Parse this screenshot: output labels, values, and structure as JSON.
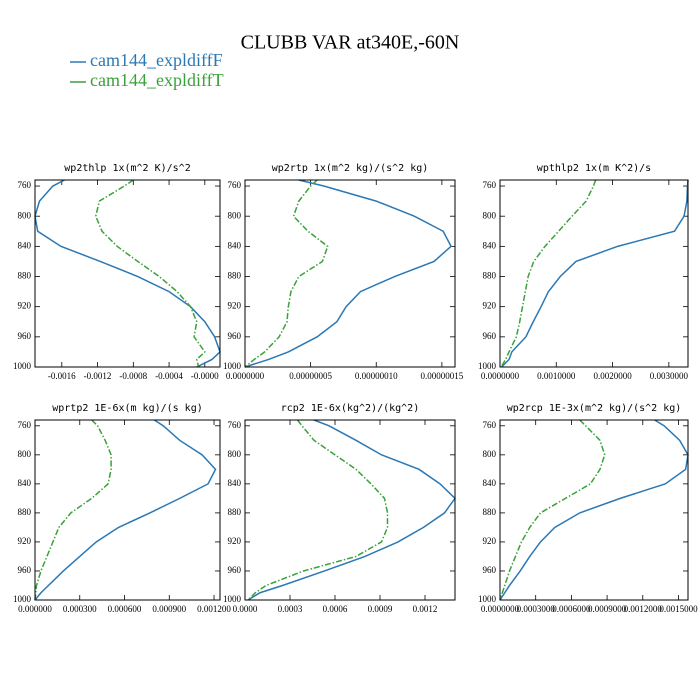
{
  "title": "CLUBB VAR at340E,-60N",
  "legend": [
    {
      "name": "cam144_expldiffF",
      "color": "#2a78b5",
      "dash": "solid"
    },
    {
      "name": "cam144_expldiffT",
      "color": "#3aa13a",
      "dash": "dashdot"
    }
  ],
  "chart_data": [
    {
      "type": "line",
      "title": "wp2thlp   1x(m^2 K)/s^2",
      "y": [
        752,
        760,
        780,
        800,
        820,
        840,
        860,
        880,
        900,
        920,
        940,
        960,
        980,
        990,
        1000
      ],
      "series": [
        {
          "values": [
            -0.00157,
            -0.0017,
            -0.00185,
            -0.0019,
            -0.00187,
            -0.00161,
            -0.00117,
            -0.00075,
            -0.0004,
            -0.00016,
            0.0,
            0.00011,
            0.00017,
            8e-05,
            -9e-05
          ]
        },
        {
          "values": [
            -0.0008,
            -0.0009,
            -0.00118,
            -0.00122,
            -0.00115,
            -0.00098,
            -0.00075,
            -0.00051,
            -0.00031,
            -0.00016,
            -9e-05,
            -0.00012,
            0.0,
            -9e-05,
            -7e-05
          ]
        }
      ],
      "xlim": [
        -0.0019,
        0.00017
      ],
      "xticks": [
        -0.0016,
        -0.0012,
        -0.0008,
        -0.0004,
        {
          "value": 0,
          "label": "-0.0000"
        }
      ],
      "ylim": [
        1000,
        752
      ],
      "yticks": [
        760,
        800,
        840,
        880,
        920,
        960,
        1000
      ]
    },
    {
      "type": "line",
      "title": "wp2rtp   1x(m^2 kg)/(s^2 kg)",
      "y": [
        752,
        760,
        780,
        800,
        820,
        840,
        860,
        880,
        900,
        920,
        940,
        960,
        980,
        990,
        1000
      ],
      "series": [
        {
          "values": [
            4.1e-08,
            6e-08,
            1e-07,
            1.29e-07,
            1.51e-07,
            1.57e-07,
            1.44e-07,
            1.14e-07,
            8.8e-08,
            7.7e-08,
            7e-08,
            5.5e-08,
            3.3e-08,
            1.8e-08,
            0
          ]
        },
        {
          "values": [
            5.5e-08,
            5e-08,
            4.1e-08,
            3.7e-08,
            4.8e-08,
            6.3e-08,
            5.9e-08,
            4.1e-08,
            3.5e-08,
            3.3e-08,
            3.2e-08,
            2.6e-08,
            1.5e-08,
            7e-09,
            0
          ]
        }
      ],
      "xlim": [
        0,
        1.6e-07
      ],
      "xticks": [
        {
          "value": 0,
          "label": "0.0000000"
        },
        {
          "value": 5e-08,
          "label": "0.00000005"
        },
        {
          "value": 1e-07,
          "label": "0.00000010"
        },
        {
          "value": 1.5e-07,
          "label": "0.00000015"
        }
      ],
      "ylim": [
        1000,
        752
      ],
      "yticks": [
        760,
        800,
        840,
        880,
        920,
        960,
        1000
      ]
    },
    {
      "type": "line",
      "title": "wpthlp2   1x(m K^2)/s",
      "y": [
        752,
        760,
        780,
        800,
        820,
        840,
        860,
        880,
        900,
        920,
        940,
        960,
        980,
        990,
        1000
      ],
      "series": [
        {
          "values": [
            0.00334,
            0.00333,
            0.00332,
            0.00327,
            0.0031,
            0.00209,
            0.00135,
            0.00107,
            0.00086,
            0.00073,
            0.00059,
            0.00046,
            0.00021,
            0.00016,
            3e-05
          ]
        },
        {
          "values": [
            0.0017,
            0.00166,
            0.00153,
            0.00128,
            0.00104,
            0.0008,
            0.0006,
            0.0005,
            0.00045,
            0.0004,
            0.00035,
            0.00029,
            0.00016,
            0.0001,
            2e-05
          ]
        }
      ],
      "xlim": [
        0,
        0.00334
      ],
      "xticks": [
        {
          "value": 0,
          "label": "0.0000000"
        },
        {
          "value": 0.001,
          "label": "0.0010000"
        },
        {
          "value": 0.002,
          "label": "0.0020000"
        },
        {
          "value": 0.003,
          "label": "0.0030000"
        }
      ],
      "ylim": [
        1000,
        752
      ],
      "yticks": [
        760,
        800,
        840,
        880,
        920,
        960,
        1000
      ]
    },
    {
      "type": "line",
      "title": "wprtp2   1E-6x(m kg)/(s kg)",
      "y": [
        752,
        760,
        780,
        800,
        820,
        840,
        860,
        880,
        900,
        920,
        940,
        960,
        980,
        990,
        1000
      ],
      "series": [
        {
          "values": [
            0.0008,
            0.00086,
            0.00097,
            0.00112,
            0.00121,
            0.00116,
            0.00097,
            0.00077,
            0.00056,
            0.00041,
            0.0003,
            0.00019,
            9e-05,
            4e-05,
            0
          ]
        },
        {
          "values": [
            0.00038,
            0.00042,
            0.00047,
            0.00051,
            0.00051,
            0.00049,
            0.00038,
            0.00024,
            0.00016,
            0.00012,
            8e-05,
            4e-05,
            1e-05,
            5e-06,
            0
          ]
        }
      ],
      "xlim": [
        0,
        0.00124
      ],
      "xticks": [
        {
          "value": 0,
          "label": "0.000000"
        },
        {
          "value": 0.0003,
          "label": "0.000300"
        },
        {
          "value": 0.0006,
          "label": "0.000600"
        },
        {
          "value": 0.0009,
          "label": "0.000900"
        },
        {
          "value": 0.0012,
          "label": "0.001200"
        }
      ],
      "ylim": [
        1000,
        752
      ],
      "yticks": [
        760,
        800,
        840,
        880,
        920,
        960,
        1000
      ]
    },
    {
      "type": "line",
      "title": "rcp2   1E-6x(kg^2)/(kg^2)",
      "y": [
        752,
        760,
        780,
        800,
        820,
        840,
        860,
        880,
        900,
        920,
        940,
        960,
        980,
        990,
        1000
      ],
      "series": [
        {
          "values": [
            0.00046,
            0.00056,
            0.00074,
            0.00091,
            0.00116,
            0.0013,
            0.0014,
            0.00133,
            0.00119,
            0.00102,
            0.0008,
            0.00053,
            0.00025,
            0.0001,
            2e-05
          ]
        },
        {
          "values": [
            0.00035,
            0.00038,
            0.00046,
            0.0006,
            0.00074,
            0.00084,
            0.00093,
            0.00095,
            0.00095,
            0.00091,
            0.00074,
            0.00039,
            0.00014,
            7e-05,
            2e-05
          ]
        }
      ],
      "xlim": [
        0,
        0.0014
      ],
      "xticks": [
        {
          "value": 0,
          "label": "0.0000"
        },
        {
          "value": 0.0003,
          "label": "0.0003"
        },
        {
          "value": 0.0006,
          "label": "0.0006"
        },
        {
          "value": 0.0009,
          "label": "0.0009"
        },
        {
          "value": 0.0012,
          "label": "0.0012"
        }
      ],
      "ylim": [
        1000,
        752
      ],
      "yticks": [
        760,
        800,
        840,
        880,
        920,
        960,
        1000
      ]
    },
    {
      "type": "line",
      "title": "wp2rcp   1E-3x(m^2 kg)/(s^2 kg)",
      "y": [
        752,
        760,
        780,
        800,
        820,
        840,
        860,
        880,
        900,
        920,
        940,
        960,
        980,
        990,
        1000
      ],
      "series": [
        {
          "values": [
            0.0013,
            0.00138,
            0.00151,
            0.00158,
            0.00156,
            0.00139,
            0.00101,
            0.00067,
            0.00046,
            0.00034,
            0.00025,
            0.00017,
            8e-05,
            4e-05,
            0
          ]
        },
        {
          "values": [
            0.00067,
            0.00072,
            0.00084,
            0.00088,
            0.00084,
            0.00076,
            0.00055,
            0.00034,
            0.00025,
            0.00018,
            0.00013,
            8e-05,
            4e-05,
            2e-05,
            0
          ]
        }
      ],
      "xlim": [
        0,
        0.00158
      ],
      "xticks": [
        {
          "value": 0,
          "label": "0.0000000"
        },
        {
          "value": 0.0003,
          "label": "0.0003000"
        },
        {
          "value": 0.0006,
          "label": "0.0006000"
        },
        {
          "value": 0.0009,
          "label": "0.0009000"
        },
        {
          "value": 0.0012,
          "label": "0.0012000"
        },
        {
          "value": 0.0015,
          "label": "0.0015000"
        }
      ],
      "ylim": [
        1000,
        752
      ],
      "yticks": [
        760,
        800,
        840,
        880,
        920,
        960,
        1000
      ]
    }
  ]
}
